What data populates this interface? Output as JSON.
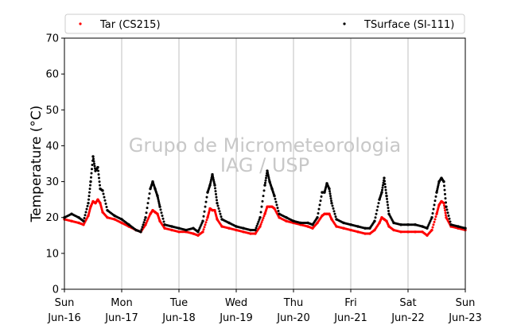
{
  "chart_data": {
    "type": "scatter",
    "title": "",
    "xlabel": "",
    "ylabel": "Temperature (°C)",
    "ylim": [
      0,
      70
    ],
    "yticks": [
      0,
      10,
      20,
      30,
      40,
      50,
      60,
      70
    ],
    "xlim": [
      "2018-06-16 00:00",
      "2018-06-23 00:00"
    ],
    "xticks": [
      {
        "day": "Sun",
        "date": "Jun-16"
      },
      {
        "day": "Mon",
        "date": "Jun-17"
      },
      {
        "day": "Tue",
        "date": "Jun-18"
      },
      {
        "day": "Wed",
        "date": "Jun-19"
      },
      {
        "day": "Thu",
        "date": "Jun-20"
      },
      {
        "day": "Fri",
        "date": "Jun-21"
      },
      {
        "day": "Sat",
        "date": "Jun-22"
      },
      {
        "day": "Sun",
        "date": "Jun-23"
      }
    ],
    "grid": "vertical",
    "legend_position": "top",
    "watermark": [
      "Grupo de Micrometeorologia",
      "IAG / USP"
    ],
    "series": [
      {
        "name": "Tar (CS215)",
        "color": "#ff0000",
        "marker": "dot",
        "x": [
          "2018-06-16 00:00",
          "2018-06-16 03:00",
          "2018-06-16 06:00",
          "2018-06-16 08:00",
          "2018-06-16 10:00",
          "2018-06-16 11:00",
          "2018-06-16 12:00",
          "2018-06-16 13:00",
          "2018-06-16 14:00",
          "2018-06-16 15:00",
          "2018-06-16 16:00",
          "2018-06-16 18:00",
          "2018-06-16 21:00",
          "2018-06-17 00:00",
          "2018-06-17 03:00",
          "2018-06-17 06:00",
          "2018-06-17 08:00",
          "2018-06-17 10:00",
          "2018-06-17 12:00",
          "2018-06-17 13:00",
          "2018-06-17 14:00",
          "2018-06-17 15:00",
          "2018-06-17 16:00",
          "2018-06-17 18:00",
          "2018-06-17 21:00",
          "2018-06-18 00:00",
          "2018-06-18 03:00",
          "2018-06-18 06:00",
          "2018-06-18 08:00",
          "2018-06-18 10:00",
          "2018-06-18 12:00",
          "2018-06-18 13:00",
          "2018-06-18 14:00",
          "2018-06-18 15:00",
          "2018-06-18 16:00",
          "2018-06-18 18:00",
          "2018-06-18 21:00",
          "2018-06-19 00:00",
          "2018-06-19 03:00",
          "2018-06-19 06:00",
          "2018-06-19 08:00",
          "2018-06-19 10:00",
          "2018-06-19 12:00",
          "2018-06-19 13:00",
          "2018-06-19 14:00",
          "2018-06-19 15:00",
          "2018-06-19 16:00",
          "2018-06-19 18:00",
          "2018-06-19 21:00",
          "2018-06-20 00:00",
          "2018-06-20 03:00",
          "2018-06-20 06:00",
          "2018-06-20 08:00",
          "2018-06-20 10:00",
          "2018-06-20 12:00",
          "2018-06-20 13:00",
          "2018-06-20 14:00",
          "2018-06-20 15:00",
          "2018-06-20 16:00",
          "2018-06-20 18:00",
          "2018-06-20 21:00",
          "2018-06-21 00:00",
          "2018-06-21 03:00",
          "2018-06-21 06:00",
          "2018-06-21 08:00",
          "2018-06-21 10:00",
          "2018-06-21 12:00",
          "2018-06-21 13:00",
          "2018-06-21 14:00",
          "2018-06-21 15:00",
          "2018-06-21 16:00",
          "2018-06-21 18:00",
          "2018-06-21 21:00",
          "2018-06-22 00:00",
          "2018-06-22 03:00",
          "2018-06-22 06:00",
          "2018-06-22 08:00",
          "2018-06-22 10:00",
          "2018-06-22 12:00",
          "2018-06-22 13:00",
          "2018-06-22 14:00",
          "2018-06-22 15:00",
          "2018-06-22 16:00",
          "2018-06-22 18:00",
          "2018-06-22 21:00",
          "2018-06-23 00:00"
        ],
        "y": [
          19.5,
          19.0,
          18.5,
          18.0,
          20.5,
          23.0,
          24.5,
          24.0,
          25.0,
          24.0,
          21.5,
          20.0,
          19.5,
          18.5,
          17.5,
          16.5,
          16.0,
          18.0,
          21.0,
          22.0,
          21.5,
          21.0,
          19.0,
          17.0,
          16.5,
          16.0,
          16.0,
          15.5,
          15.0,
          16.0,
          20.0,
          22.5,
          22.0,
          22.0,
          19.5,
          17.5,
          17.0,
          16.5,
          16.0,
          15.5,
          15.5,
          17.5,
          21.0,
          23.0,
          23.0,
          23.0,
          22.5,
          20.0,
          19.0,
          18.5,
          18.0,
          17.5,
          17.0,
          18.5,
          20.5,
          21.0,
          21.0,
          21.0,
          19.5,
          17.5,
          17.0,
          16.5,
          16.0,
          15.5,
          15.5,
          16.5,
          18.5,
          20.0,
          19.5,
          19.0,
          17.5,
          16.5,
          16.0,
          16.0,
          16.0,
          16.0,
          15.0,
          16.5,
          21.0,
          23.5,
          24.5,
          24.0,
          20.0,
          17.5,
          17.0,
          16.5
        ]
      },
      {
        "name": "TSurface (SI-111)",
        "color": "#000000",
        "marker": "dot",
        "x": [
          "2018-06-16 00:00",
          "2018-06-16 03:00",
          "2018-06-16 06:00",
          "2018-06-16 08:00",
          "2018-06-16 10:00",
          "2018-06-16 11:00",
          "2018-06-16 12:00",
          "2018-06-16 13:00",
          "2018-06-16 14:00",
          "2018-06-16 15:00",
          "2018-06-16 16:00",
          "2018-06-16 18:00",
          "2018-06-16 21:00",
          "2018-06-17 00:00",
          "2018-06-17 03:00",
          "2018-06-17 06:00",
          "2018-06-17 08:00",
          "2018-06-17 10:00",
          "2018-06-17 12:00",
          "2018-06-17 13:00",
          "2018-06-17 14:00",
          "2018-06-17 15:00",
          "2018-06-17 16:00",
          "2018-06-17 18:00",
          "2018-06-17 21:00",
          "2018-06-18 00:00",
          "2018-06-18 03:00",
          "2018-06-18 06:00",
          "2018-06-18 08:00",
          "2018-06-18 10:00",
          "2018-06-18 12:00",
          "2018-06-18 13:00",
          "2018-06-18 14:00",
          "2018-06-18 15:00",
          "2018-06-18 16:00",
          "2018-06-18 18:00",
          "2018-06-18 21:00",
          "2018-06-19 00:00",
          "2018-06-19 03:00",
          "2018-06-19 06:00",
          "2018-06-19 08:00",
          "2018-06-19 10:00",
          "2018-06-19 12:00",
          "2018-06-19 13:00",
          "2018-06-19 14:00",
          "2018-06-19 15:00",
          "2018-06-19 16:00",
          "2018-06-19 18:00",
          "2018-06-19 21:00",
          "2018-06-20 00:00",
          "2018-06-20 03:00",
          "2018-06-20 06:00",
          "2018-06-20 08:00",
          "2018-06-20 10:00",
          "2018-06-20 12:00",
          "2018-06-20 13:00",
          "2018-06-20 14:00",
          "2018-06-20 15:00",
          "2018-06-20 16:00",
          "2018-06-20 18:00",
          "2018-06-20 21:00",
          "2018-06-21 00:00",
          "2018-06-21 03:00",
          "2018-06-21 06:00",
          "2018-06-21 08:00",
          "2018-06-21 10:00",
          "2018-06-21 12:00",
          "2018-06-21 13:00",
          "2018-06-21 14:00",
          "2018-06-21 15:00",
          "2018-06-21 16:00",
          "2018-06-21 18:00",
          "2018-06-21 21:00",
          "2018-06-22 00:00",
          "2018-06-22 03:00",
          "2018-06-22 06:00",
          "2018-06-22 08:00",
          "2018-06-22 10:00",
          "2018-06-22 12:00",
          "2018-06-22 13:00",
          "2018-06-22 14:00",
          "2018-06-22 15:00",
          "2018-06-22 16:00",
          "2018-06-22 18:00",
          "2018-06-22 21:00",
          "2018-06-23 00:00"
        ],
        "y": [
          20.0,
          21.0,
          20.0,
          19.0,
          24.0,
          30.0,
          37.0,
          33.0,
          34.0,
          28.0,
          27.5,
          22.0,
          20.5,
          19.5,
          18.0,
          16.5,
          16.0,
          20.0,
          28.0,
          30.0,
          28.0,
          26.0,
          23.0,
          18.0,
          17.5,
          17.0,
          16.5,
          17.0,
          16.0,
          19.0,
          27.0,
          29.0,
          32.0,
          29.0,
          24.0,
          19.5,
          18.5,
          17.5,
          17.0,
          16.5,
          16.5,
          20.0,
          29.0,
          33.0,
          30.0,
          28.0,
          26.0,
          21.0,
          20.0,
          19.0,
          18.5,
          18.5,
          18.0,
          20.0,
          27.0,
          27.0,
          29.5,
          28.0,
          24.0,
          19.5,
          18.5,
          18.0,
          17.5,
          17.0,
          17.0,
          19.0,
          25.0,
          27.0,
          31.0,
          26.0,
          21.0,
          18.5,
          18.0,
          18.0,
          18.0,
          17.5,
          17.0,
          20.0,
          27.0,
          30.0,
          31.0,
          30.0,
          23.0,
          18.0,
          17.5,
          17.0
        ]
      }
    ]
  }
}
